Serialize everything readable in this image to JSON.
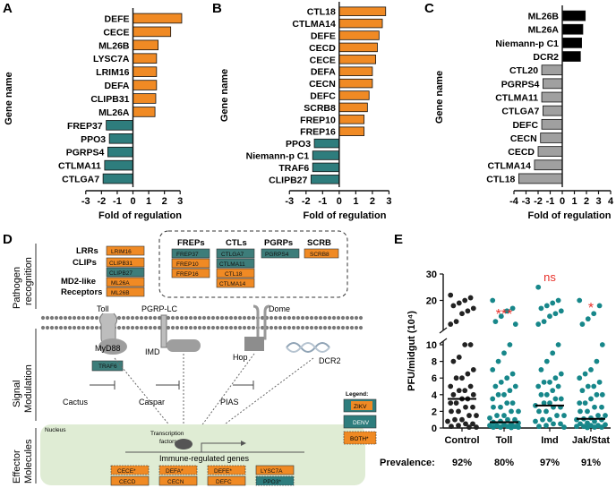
{
  "colors": {
    "up": "#f08a24",
    "down": "#2e7d7d",
    "grey": "#a0a0a0",
    "black": "#000000",
    "nucleus": "#dfecd4",
    "zikv": "#2e7d7d",
    "denv": "#3d6f6a",
    "orange": "#f08a24",
    "dot": "#17878a",
    "star": "#e8302a"
  },
  "panels": {
    "A": "A",
    "B": "B",
    "C": "C",
    "D": "D",
    "E": "E"
  },
  "chart_data": [
    {
      "type": "bar",
      "orientation": "horizontal",
      "panel": "A",
      "categories": [
        "DEFE",
        "CECE",
        "ML26B",
        "LYSC7A",
        "LRIM16",
        "DEFA",
        "CLIPB31",
        "ML26A",
        "FREP37",
        "PPO3",
        "PGRPS4",
        "CTLMA11",
        "CTLGA7"
      ],
      "values": [
        3.1,
        2.4,
        1.6,
        1.5,
        1.5,
        1.5,
        1.45,
        1.4,
        -1.7,
        -1.5,
        -1.6,
        -1.8,
        -1.9
      ],
      "xlim": [
        -3.5,
        3.5
      ],
      "xticks": [
        "-3",
        "-2",
        "-1",
        "0",
        "1",
        "2",
        "3"
      ],
      "tick_values": [
        -3,
        -2,
        -1,
        0,
        1,
        2,
        3
      ],
      "xlabel": "Fold of regulation",
      "ylabel": "Gene name"
    },
    {
      "type": "bar",
      "orientation": "horizontal",
      "panel": "B",
      "categories": [
        "CTL18",
        "CTLMA14",
        "DEFE",
        "CECD",
        "CECE",
        "DEFA",
        "CECN",
        "DEFC",
        "SCRB8",
        "FREP10",
        "FREP16",
        "PPO3",
        "Niemann-p C1",
        "TRAF6",
        "CLIPB27"
      ],
      "values": [
        2.8,
        2.6,
        2.4,
        2.3,
        2.2,
        2.0,
        2.0,
        1.8,
        1.7,
        1.5,
        1.5,
        -1.5,
        -1.6,
        -1.6,
        -1.7
      ],
      "xlim": [
        -3.5,
        3.3
      ],
      "xticks": [
        "-3",
        "-2",
        "-1",
        "0",
        "1",
        "2",
        "3"
      ],
      "tick_values": [
        -3,
        -2,
        -1,
        0,
        1,
        2,
        3
      ],
      "xlabel": "Fold of regulation",
      "ylabel": "Gene name"
    },
    {
      "type": "bar",
      "orientation": "horizontal",
      "panel": "C",
      "categories": [
        "ML26B",
        "ML26A",
        "Niemann-p C1",
        "DCR2",
        "CTL20",
        "PGRPS4",
        "CTLMA11",
        "CTLGA7",
        "DEFC",
        "CECN",
        "CECD",
        "CTLMA14",
        "CTL18"
      ],
      "values": [
        1.9,
        1.7,
        1.6,
        1.5,
        -1.7,
        -1.6,
        -1.7,
        -1.6,
        -1.7,
        -1.8,
        -2.0,
        -2.3,
        -3.6
      ],
      "value_colors": [
        "black",
        "black",
        "black",
        "black",
        "grey",
        "grey",
        "grey",
        "grey",
        "grey",
        "grey",
        "grey",
        "grey",
        "grey"
      ],
      "xlim": [
        -4,
        4
      ],
      "xticks": [
        "-4",
        "-3",
        "-2",
        "-1",
        "0",
        "1",
        "2",
        "3",
        "4"
      ],
      "tick_values": [
        -4,
        -3,
        -2,
        -1,
        0,
        1,
        2,
        3,
        4
      ],
      "xlabel": "Fold of regulation",
      "ylabel": "Gene name"
    },
    {
      "type": "scatter",
      "panel": "E",
      "categories": [
        "Control",
        "Toll",
        "Imd",
        "Jak/Stat"
      ],
      "medians": [
        3.5,
        0.7,
        2.7,
        1.1
      ],
      "significance": [
        "",
        "***",
        "ns",
        "*"
      ],
      "prevalence_label": "Prevalence:",
      "prevalence": [
        "92%",
        "80%",
        "97%",
        "91%"
      ],
      "ylabel": "PFU/midgut (10⁴)",
      "yticks_lower": [
        "0",
        "2",
        "4",
        "6",
        "8",
        "10"
      ],
      "ytick_values_lower": [
        0,
        2,
        4,
        6,
        8,
        10
      ],
      "yticks_upper": [
        "20",
        "30"
      ],
      "ytick_values_upper": [
        20,
        30
      ],
      "points": [
        [
          22,
          21,
          20,
          19,
          18,
          17,
          16,
          15,
          12,
          11,
          10,
          10,
          8.5,
          8,
          7,
          6.5,
          6,
          6,
          5,
          5,
          4.5,
          4.5,
          4,
          4,
          3.5,
          3.5,
          3,
          3,
          2.5,
          2.5,
          2,
          2,
          1.5,
          1.5,
          1,
          1,
          0.8,
          0.5,
          0.5,
          0.3,
          0.2,
          0.1,
          0.1
        ],
        [
          20,
          17,
          16,
          14,
          12,
          11,
          10,
          9,
          8,
          7,
          6.5,
          6,
          5.5,
          5,
          5,
          4.5,
          4,
          4,
          3.5,
          3,
          3,
          2.5,
          2.5,
          2,
          2,
          1.5,
          1.5,
          1.2,
          1,
          1,
          0.8,
          0.7,
          0.6,
          0.5,
          0.4,
          0.3,
          0.3,
          0.2,
          0.2,
          0.1,
          0.1,
          0.1,
          0.05
        ],
        [
          25,
          20,
          19,
          18,
          17,
          16,
          15,
          14,
          12,
          11,
          10,
          9,
          8,
          7,
          6.5,
          6,
          5.5,
          5.5,
          5,
          5,
          4.5,
          4,
          4,
          3.5,
          3.5,
          3,
          3,
          2.7,
          2.5,
          2.5,
          2,
          2,
          1.5,
          1.5,
          1,
          1,
          0.8,
          0.5,
          0.5,
          0.3,
          0.2,
          0.1
        ],
        [
          20,
          18,
          15,
          13,
          11,
          10,
          8,
          7,
          6.5,
          6,
          5.5,
          5,
          5,
          4.5,
          4,
          4,
          3.5,
          3,
          3,
          2.5,
          2.5,
          2,
          2,
          1.5,
          1.5,
          1.2,
          1.1,
          1,
          1,
          0.8,
          0.6,
          0.5,
          0.4,
          0.3,
          0.3,
          0.2,
          0.2,
          0.1,
          0.1,
          0.05
        ]
      ]
    }
  ],
  "diagram": {
    "sections": [
      "Pathogen recognition",
      "Signal Modulation",
      "Effector Molecules"
    ],
    "row_labels": [
      "LRRs",
      "CLIPs",
      "MD2-like",
      "Receptors"
    ],
    "lrr": "LRIM16",
    "clips": [
      "CLIPB31",
      "CLIPB27"
    ],
    "md2": [
      "ML26A",
      "ML26B"
    ],
    "frep_title": "FREPs",
    "freps": [
      "FREP37",
      "FREP10",
      "FREP16"
    ],
    "ctl_title": "CTLs",
    "ctls": [
      "CTLGA7",
      "CTLMA11",
      "CTL18",
      "CTLMA14"
    ],
    "pgrp_title": "PGRPs",
    "pgrps": [
      "PGRPS4"
    ],
    "scrb_title": "SCRB",
    "scrb": [
      "SCRB8"
    ],
    "receptors": [
      "Toll",
      "PGRP-LC",
      "Dome"
    ],
    "adaptors": [
      "MyD88",
      "IMD",
      "Hop",
      "DCR2"
    ],
    "traf": "TRAF6",
    "inhibitors": [
      "Cactus",
      "Caspar",
      "PIAS"
    ],
    "nucleus": "Nucleus",
    "tf": "Transcription factors",
    "genes_title": "Immune-regulated genes",
    "genes_row1": [
      "CECE*",
      "DEFA*",
      "DEFE*",
      "LYSC7A"
    ],
    "genes_row2": [
      "CECD",
      "CECN",
      "DEFC",
      "PPO3*"
    ],
    "legend_title": "Legend:",
    "legend": [
      "ZIKV",
      "DENV",
      "BOTH*"
    ]
  }
}
